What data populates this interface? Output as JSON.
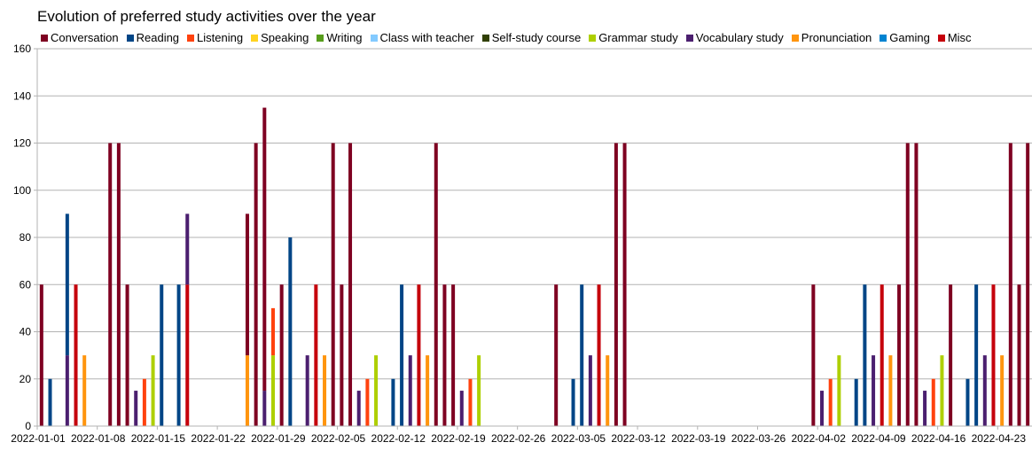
{
  "chart_data": {
    "type": "bar",
    "stacked": true,
    "title": "Evolution of preferred study activities over the year",
    "xlabel": "",
    "ylabel": "",
    "ylim": [
      0,
      160
    ],
    "y_ticks": [
      0,
      20,
      40,
      60,
      80,
      100,
      120,
      140,
      160
    ],
    "grid": true,
    "legend_position": "top",
    "x_start": "2022-01-01",
    "x_end": "2022-04-26",
    "x_tick_labels": [
      "2022-01-01",
      "2022-01-08",
      "2022-01-15",
      "2022-01-22",
      "2022-01-29",
      "2022-02-05",
      "2022-02-12",
      "2022-02-19",
      "2022-02-26",
      "2022-03-05",
      "2022-03-12",
      "2022-03-19",
      "2022-03-26",
      "2022-04-02",
      "2022-04-09",
      "2022-04-16",
      "2022-04-23"
    ],
    "series": [
      {
        "name": "Conversation",
        "color": "#7e0021"
      },
      {
        "name": "Reading",
        "color": "#004586"
      },
      {
        "name": "Listening",
        "color": "#ff420e"
      },
      {
        "name": "Speaking",
        "color": "#ffd320"
      },
      {
        "name": "Writing",
        "color": "#579d1c"
      },
      {
        "name": "Class with teacher",
        "color": "#83caff"
      },
      {
        "name": "Self-study course",
        "color": "#314004"
      },
      {
        "name": "Grammar study",
        "color": "#aecf00"
      },
      {
        "name": "Vocabulary study",
        "color": "#4b1f6f"
      },
      {
        "name": "Pronunciation",
        "color": "#ff950e"
      },
      {
        "name": "Gaming",
        "color": "#0084d1"
      },
      {
        "name": "Misc",
        "color": "#c5000b"
      }
    ],
    "data": [
      {
        "date": "2022-01-01",
        "values": {
          "Conversation": 60
        }
      },
      {
        "date": "2022-01-02",
        "values": {
          "Reading": 20
        }
      },
      {
        "date": "2022-01-04",
        "values": {
          "Vocabulary study": 30,
          "Reading": 60
        }
      },
      {
        "date": "2022-01-05",
        "values": {
          "Misc": 60
        }
      },
      {
        "date": "2022-01-06",
        "values": {
          "Pronunciation": 30
        }
      },
      {
        "date": "2022-01-09",
        "values": {
          "Conversation": 120
        }
      },
      {
        "date": "2022-01-10",
        "values": {
          "Conversation": 120
        }
      },
      {
        "date": "2022-01-11",
        "values": {
          "Conversation": 60
        }
      },
      {
        "date": "2022-01-12",
        "values": {
          "Vocabulary study": 15
        }
      },
      {
        "date": "2022-01-13",
        "values": {
          "Listening": 20
        }
      },
      {
        "date": "2022-01-14",
        "values": {
          "Grammar study": 30
        }
      },
      {
        "date": "2022-01-15",
        "values": {
          "Reading": 60
        }
      },
      {
        "date": "2022-01-17",
        "values": {
          "Reading": 60
        }
      },
      {
        "date": "2022-01-18",
        "values": {
          "Misc": 60,
          "Vocabulary study": 30
        }
      },
      {
        "date": "2022-01-25",
        "values": {
          "Pronunciation": 30,
          "Conversation": 60
        }
      },
      {
        "date": "2022-01-26",
        "values": {
          "Conversation": 120
        }
      },
      {
        "date": "2022-01-27",
        "values": {
          "Vocabulary study": 15,
          "Conversation": 120
        }
      },
      {
        "date": "2022-01-28",
        "values": {
          "Grammar study": 30,
          "Listening": 20
        }
      },
      {
        "date": "2022-01-29",
        "values": {
          "Conversation": 60
        }
      },
      {
        "date": "2022-01-30",
        "values": {
          "Reading": 80
        }
      },
      {
        "date": "2022-02-01",
        "values": {
          "Vocabulary study": 30
        }
      },
      {
        "date": "2022-02-02",
        "values": {
          "Misc": 60
        }
      },
      {
        "date": "2022-02-03",
        "values": {
          "Pronunciation": 30
        }
      },
      {
        "date": "2022-02-04",
        "values": {
          "Conversation": 120
        }
      },
      {
        "date": "2022-02-05",
        "values": {
          "Conversation": 60
        }
      },
      {
        "date": "2022-02-06",
        "values": {
          "Conversation": 120
        }
      },
      {
        "date": "2022-02-07",
        "values": {
          "Vocabulary study": 15
        }
      },
      {
        "date": "2022-02-08",
        "values": {
          "Listening": 20
        }
      },
      {
        "date": "2022-02-09",
        "values": {
          "Grammar study": 30
        }
      },
      {
        "date": "2022-02-11",
        "values": {
          "Reading": 20
        }
      },
      {
        "date": "2022-02-12",
        "values": {
          "Reading": 60
        }
      },
      {
        "date": "2022-02-13",
        "values": {
          "Vocabulary study": 30
        }
      },
      {
        "date": "2022-02-14",
        "values": {
          "Misc": 60
        }
      },
      {
        "date": "2022-02-15",
        "values": {
          "Pronunciation": 30
        }
      },
      {
        "date": "2022-02-16",
        "values": {
          "Conversation": 120
        }
      },
      {
        "date": "2022-02-17",
        "values": {
          "Conversation": 60
        }
      },
      {
        "date": "2022-02-18",
        "values": {
          "Conversation": 60
        }
      },
      {
        "date": "2022-02-19",
        "values": {
          "Vocabulary study": 15
        }
      },
      {
        "date": "2022-02-20",
        "values": {
          "Listening": 20
        }
      },
      {
        "date": "2022-02-21",
        "values": {
          "Grammar study": 30
        }
      },
      {
        "date": "2022-03-02",
        "values": {
          "Conversation": 60
        }
      },
      {
        "date": "2022-03-04",
        "values": {
          "Reading": 20
        }
      },
      {
        "date": "2022-03-05",
        "values": {
          "Reading": 60
        }
      },
      {
        "date": "2022-03-06",
        "values": {
          "Vocabulary study": 30
        }
      },
      {
        "date": "2022-03-07",
        "values": {
          "Misc": 60
        }
      },
      {
        "date": "2022-03-08",
        "values": {
          "Pronunciation": 30
        }
      },
      {
        "date": "2022-03-09",
        "values": {
          "Conversation": 120
        }
      },
      {
        "date": "2022-03-10",
        "values": {
          "Conversation": 120
        }
      },
      {
        "date": "2022-04-01",
        "values": {
          "Conversation": 60
        }
      },
      {
        "date": "2022-04-02",
        "values": {
          "Vocabulary study": 15
        }
      },
      {
        "date": "2022-04-03",
        "values": {
          "Listening": 20
        }
      },
      {
        "date": "2022-04-04",
        "values": {
          "Grammar study": 30
        }
      },
      {
        "date": "2022-04-06",
        "values": {
          "Reading": 20
        }
      },
      {
        "date": "2022-04-07",
        "values": {
          "Reading": 60
        }
      },
      {
        "date": "2022-04-08",
        "values": {
          "Vocabulary study": 30
        }
      },
      {
        "date": "2022-04-09",
        "values": {
          "Misc": 60
        }
      },
      {
        "date": "2022-04-10",
        "values": {
          "Pronunciation": 30
        }
      },
      {
        "date": "2022-04-11",
        "values": {
          "Conversation": 60
        }
      },
      {
        "date": "2022-04-12",
        "values": {
          "Conversation": 120
        }
      },
      {
        "date": "2022-04-13",
        "values": {
          "Conversation": 120
        }
      },
      {
        "date": "2022-04-14",
        "values": {
          "Vocabulary study": 15
        }
      },
      {
        "date": "2022-04-15",
        "values": {
          "Listening": 20
        }
      },
      {
        "date": "2022-04-16",
        "values": {
          "Grammar study": 30
        }
      },
      {
        "date": "2022-04-17",
        "values": {
          "Conversation": 60
        }
      },
      {
        "date": "2022-04-19",
        "values": {
          "Reading": 20
        }
      },
      {
        "date": "2022-04-20",
        "values": {
          "Reading": 60
        }
      },
      {
        "date": "2022-04-21",
        "values": {
          "Vocabulary study": 30
        }
      },
      {
        "date": "2022-04-22",
        "values": {
          "Misc": 60
        }
      },
      {
        "date": "2022-04-23",
        "values": {
          "Pronunciation": 30
        }
      },
      {
        "date": "2022-04-24",
        "values": {
          "Conversation": 120
        }
      },
      {
        "date": "2022-04-25",
        "values": {
          "Conversation": 60
        }
      },
      {
        "date": "2022-04-26",
        "values": {
          "Conversation": 120
        }
      }
    ]
  }
}
